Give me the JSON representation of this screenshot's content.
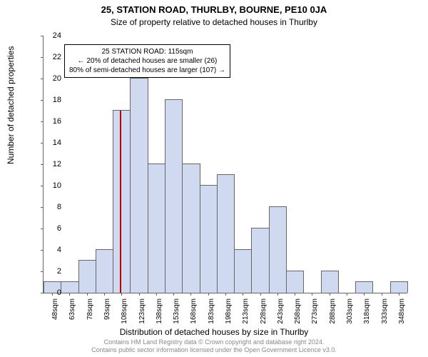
{
  "title_main": "25, STATION ROAD, THURLBY, BOURNE, PE10 0JA",
  "title_sub": "Size of property relative to detached houses in Thurlby",
  "y_axis_label": "Number of detached properties",
  "x_axis_label": "Distribution of detached houses by size in Thurlby",
  "credits_line1": "Contains HM Land Registry data © Crown copyright and database right 2024.",
  "credits_line2": "Contains public sector information licensed under the Open Government Licence v3.0.",
  "chart": {
    "type": "histogram",
    "ylim": [
      0,
      24
    ],
    "ytick_step": 2,
    "x_start": 48,
    "x_step": 15,
    "x_count": 21,
    "x_unit": "sqm",
    "bar_color": "#cfdaf0",
    "bar_border_color": "#666666",
    "marker_color": "#c00000",
    "marker_x": 115,
    "marker_height": 17,
    "background_color": "#ffffff",
    "bars": [
      {
        "x": 48,
        "y": 1
      },
      {
        "x": 63,
        "y": 1
      },
      {
        "x": 78,
        "y": 3
      },
      {
        "x": 93,
        "y": 4
      },
      {
        "x": 108,
        "y": 17
      },
      {
        "x": 123,
        "y": 20
      },
      {
        "x": 137,
        "y": 12
      },
      {
        "x": 152,
        "y": 18
      },
      {
        "x": 167,
        "y": 12
      },
      {
        "x": 182,
        "y": 10
      },
      {
        "x": 197,
        "y": 11
      },
      {
        "x": 212,
        "y": 4
      },
      {
        "x": 227,
        "y": 6
      },
      {
        "x": 242,
        "y": 8
      },
      {
        "x": 257,
        "y": 2
      },
      {
        "x": 271,
        "y": 0
      },
      {
        "x": 286,
        "y": 2
      },
      {
        "x": 301,
        "y": 0
      },
      {
        "x": 316,
        "y": 1
      },
      {
        "x": 331,
        "y": 0
      },
      {
        "x": 346,
        "y": 1
      }
    ],
    "annotation": {
      "line1": "25 STATION ROAD: 115sqm",
      "line2": "← 20% of detached houses are smaller (26)",
      "line3": "80% of semi-detached houses are larger (107) →"
    }
  }
}
